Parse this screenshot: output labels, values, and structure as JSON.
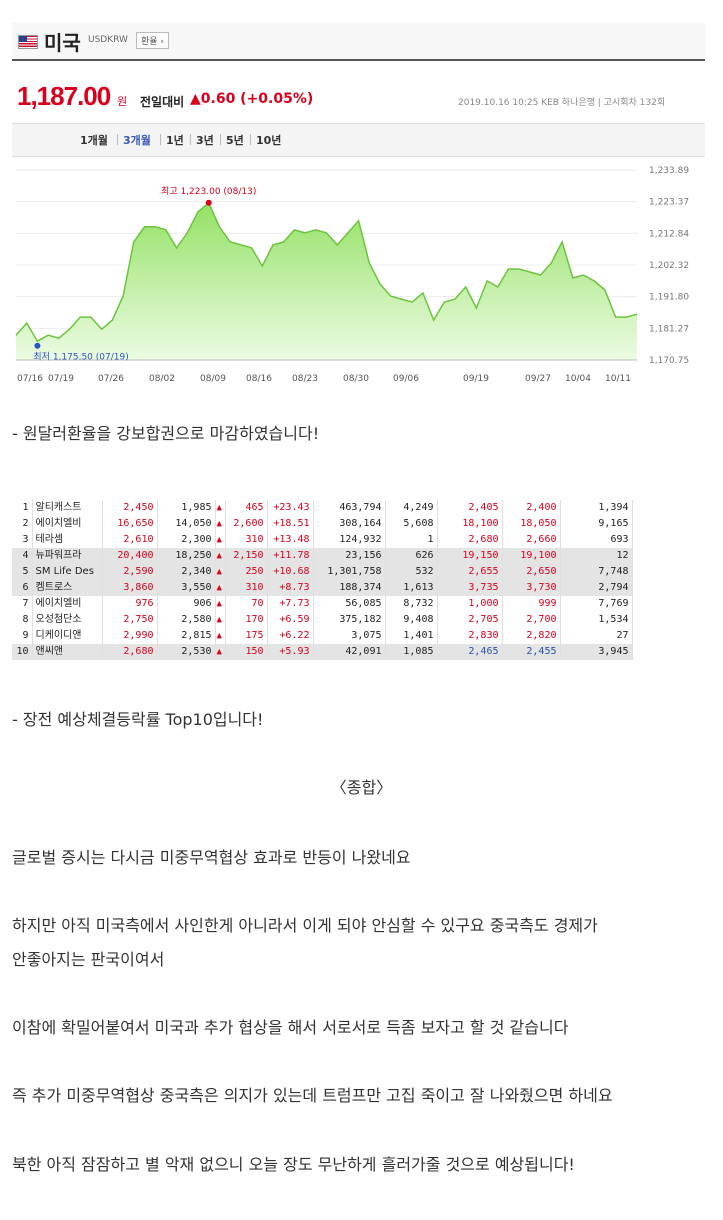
{
  "widget": {
    "country": "미국",
    "code": "USDKRW",
    "exchange_button": "환율 ›",
    "rate": "1,187.00",
    "unit": "원",
    "compare_label": "전일대비",
    "change": "▲0.60 (+0.05%)",
    "meta": "2019.10.16 10:25  KEB 하나은행  |  고시회차 132회",
    "tabs": [
      "1개월",
      "3개월",
      "1년",
      "3년",
      "5년",
      "10년"
    ],
    "active_tab": "3개월"
  },
  "chart_data": {
    "type": "area",
    "title": "",
    "x_labels": [
      "07/16",
      "07/19",
      "07/26",
      "08/02",
      "08/09",
      "08/16",
      "08/23",
      "08/30",
      "09/06",
      "09/19",
      "09/27",
      "10/04",
      "10/11"
    ],
    "y_ticks": [
      "1,233.89",
      "1,223.37",
      "1,212.84",
      "1,202.32",
      "1,191.80",
      "1,181.27",
      "1,170.75"
    ],
    "ylim": [
      1170.75,
      1233.89
    ],
    "values": [
      1179,
      1183,
      1177,
      1179,
      1178,
      1181,
      1185,
      1185,
      1181,
      1184,
      1192,
      1210,
      1215,
      1215,
      1214,
      1208,
      1213,
      1220,
      1223,
      1215,
      1210,
      1209,
      1208,
      1202,
      1209,
      1210,
      1214,
      1213,
      1214,
      1213,
      1209,
      1213,
      1217,
      1203,
      1196,
      1192,
      1191,
      1190,
      1193,
      1184,
      1190,
      1191,
      1195,
      1188,
      1197,
      1195,
      1201,
      1201,
      1200,
      1199,
      1203,
      1210,
      1198,
      1199,
      1197,
      1194,
      1185,
      1185,
      1186
    ],
    "max_label": "최고 1,223.00 (08/13)",
    "max_value": 1223.0,
    "min_label": "최저 1,175.50 (07/19)",
    "min_value": 1175.5,
    "fill_color": "#8ddf5b",
    "line_color": "#6cc43c",
    "grid": true
  },
  "text1": "- 원달러환율을 강보합권으로 마감하였습니다!",
  "table": {
    "rows": [
      {
        "no": "1",
        "name": "알티캐스트",
        "c1": "2,450",
        "c2": "1,985",
        "arrow": "▲",
        "c3": "465",
        "c4": "+23.43",
        "c5": "463,794",
        "c6": "4,249",
        "c7": "2,405",
        "c8": "2,400",
        "c9": "1,394",
        "g": false,
        "blue": false
      },
      {
        "no": "2",
        "name": "에이치엘비",
        "c1": "16,650",
        "c2": "14,050",
        "arrow": "▲",
        "c3": "2,600",
        "c4": "+18.51",
        "c5": "308,164",
        "c6": "5,608",
        "c7": "18,100",
        "c8": "18,050",
        "c9": "9,165",
        "g": false,
        "blue": false
      },
      {
        "no": "3",
        "name": "테라셈",
        "c1": "2,610",
        "c2": "2,300",
        "arrow": "▲",
        "c3": "310",
        "c4": "+13.48",
        "c5": "124,932",
        "c6": "1",
        "c7": "2,680",
        "c8": "2,660",
        "c9": "693",
        "g": false,
        "blue": false
      },
      {
        "no": "4",
        "name": "뉴파워프라",
        "c1": "20,400",
        "c2": "18,250",
        "arrow": "▲",
        "c3": "2,150",
        "c4": "+11.78",
        "c5": "23,156",
        "c6": "626",
        "c7": "19,150",
        "c8": "19,100",
        "c9": "12",
        "g": true,
        "blue": false
      },
      {
        "no": "5",
        "name": "SM Life Des",
        "c1": "2,590",
        "c2": "2,340",
        "arrow": "▲",
        "c3": "250",
        "c4": "+10.68",
        "c5": "1,301,758",
        "c6": "532",
        "c7": "2,655",
        "c8": "2,650",
        "c9": "7,748",
        "g": true,
        "blue": false
      },
      {
        "no": "6",
        "name": "켐트로스",
        "c1": "3,860",
        "c2": "3,550",
        "arrow": "▲",
        "c3": "310",
        "c4": "+8.73",
        "c5": "188,374",
        "c6": "1,613",
        "c7": "3,735",
        "c8": "3,730",
        "c9": "2,794",
        "g": true,
        "blue": false
      },
      {
        "no": "7",
        "name": "에이치엘비",
        "c1": "976",
        "c2": "906",
        "arrow": "▲",
        "c3": "70",
        "c4": "+7.73",
        "c5": "56,085",
        "c6": "8,732",
        "c7": "1,000",
        "c8": "999",
        "c9": "7,769",
        "g": false,
        "blue": false
      },
      {
        "no": "8",
        "name": "오성첨단소",
        "c1": "2,750",
        "c2": "2,580",
        "arrow": "▲",
        "c3": "170",
        "c4": "+6.59",
        "c5": "375,182",
        "c6": "9,408",
        "c7": "2,705",
        "c8": "2,700",
        "c9": "1,534",
        "g": false,
        "blue": false
      },
      {
        "no": "9",
        "name": "디케이디앤",
        "c1": "2,990",
        "c2": "2,815",
        "arrow": "▲",
        "c3": "175",
        "c4": "+6.22",
        "c5": "3,075",
        "c6": "1,401",
        "c7": "2,830",
        "c8": "2,820",
        "c9": "27",
        "g": false,
        "blue": false
      },
      {
        "no": "10",
        "name": "앤씨앤",
        "c1": "2,680",
        "c2": "2,530",
        "arrow": "▲",
        "c3": "150",
        "c4": "+5.93",
        "c5": "42,091",
        "c6": "1,085",
        "c7": "2,465",
        "c8": "2,455",
        "c9": "3,945",
        "g": true,
        "blue": true
      }
    ]
  },
  "text2": "- 장전 예상체결등락률 Top10입니다!",
  "heading": "〈종합〉",
  "p1": "글로벌 증시는 다시금 미중무역협상 효과로 반등이 나왔네요",
  "p2a": "하지만 아직 미국측에서 사인한게 아니라서 이게 되야 안심할 수 있구요 중국측도 경제가",
  "p2b": "안좋아지는 판국이여서",
  "p3": "이참에 확밀어붙여서 미국과 추가 협상을 해서 서로서로 득좀 보자고 할 것 같습니다",
  "p4": "즉 추가 미중무역협상 중국측은 의지가 있는데 트럼프만 고집 죽이고 잘 나와줬으면 하네요",
  "p5": "북한 아직 잠잠하고 별 악재 없으니 오늘 장도 무난하게 흘러가줄 것으로 예상됩니다!"
}
